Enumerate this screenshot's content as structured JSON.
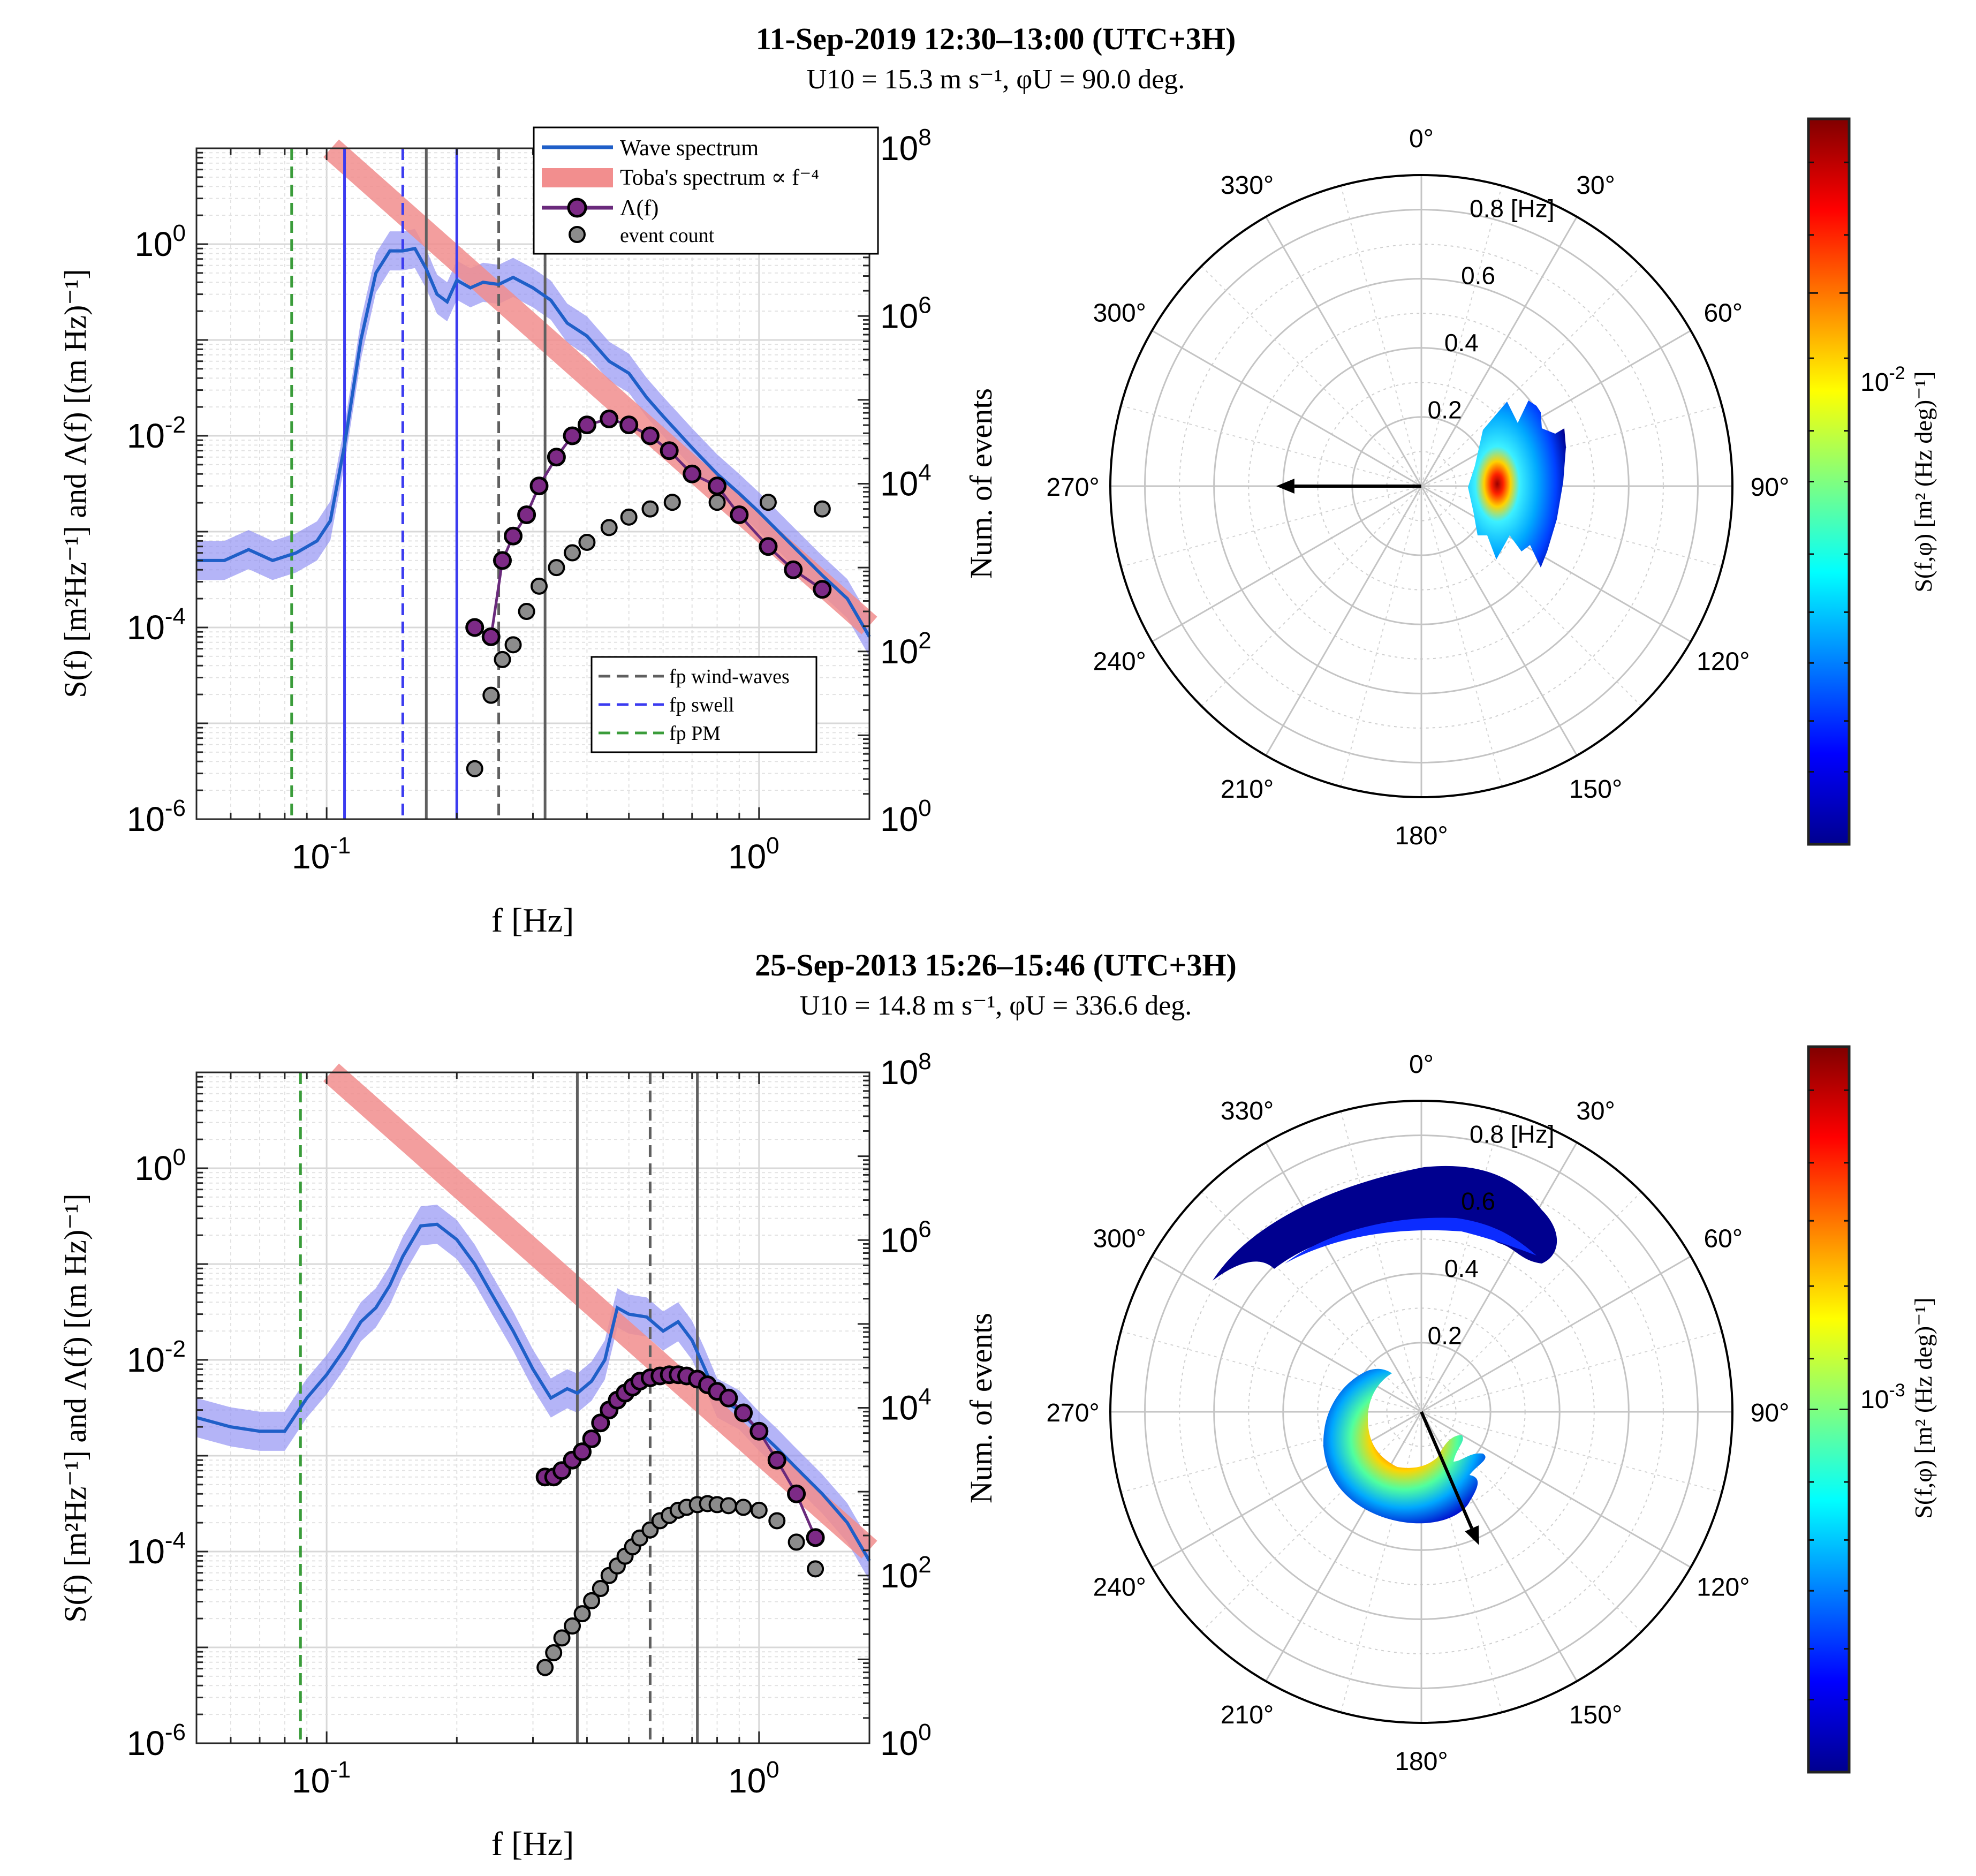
{
  "panels": [
    {
      "title": "11-Sep-2019 12:30–13:00 (UTC+3H)",
      "subtitle": "U10 = 15.3 m s⁻¹, φU = 90.0 deg.",
      "spectrum_chart": {
        "type": "line",
        "xlabel": "f [Hz]",
        "ylabel": "S(f) [m²Hz⁻¹] and Λ(f) [(m Hz)⁻¹]",
        "ylabel_right": "Num. of events",
        "xlim": [
          0.05,
          1.8
        ],
        "ylim": [
          1e-06,
          10
        ],
        "ylim_right": [
          1,
          100000000.0
        ],
        "xticks": [
          {
            "v": 0.1,
            "b": "10",
            "e": "-1"
          },
          {
            "v": 1,
            "b": "10",
            "e": "0"
          }
        ],
        "yticks": [
          {
            "v": 1,
            "b": "10",
            "e": "0"
          },
          {
            "v": 0.01,
            "b": "10",
            "e": "-2"
          },
          {
            "v": 0.0001,
            "b": "10",
            "e": "-4"
          },
          {
            "v": 1e-06,
            "b": "10",
            "e": "-6"
          }
        ],
        "yticks_right": [
          {
            "v": 100000000.0,
            "b": "10",
            "e": "8"
          },
          {
            "v": 1000000.0,
            "b": "10",
            "e": "6"
          },
          {
            "v": 10000.0,
            "b": "10",
            "e": "4"
          },
          {
            "v": 100,
            "b": "10",
            "e": "2"
          },
          {
            "v": 1,
            "b": "10",
            "e": "0"
          }
        ],
        "legend1": [
          "Wave spectrum",
          "Toba's spectrum ∝ f⁻⁴",
          "Λ(f)",
          "event count"
        ],
        "legend2": [
          "fp wind-waves",
          "fp swell",
          "fp PM"
        ],
        "wave_spectrum": {
          "f": [
            0.05,
            0.058,
            0.066,
            0.075,
            0.085,
            0.095,
            0.102,
            0.11,
            0.12,
            0.13,
            0.14,
            0.15,
            0.16,
            0.17,
            0.18,
            0.19,
            0.2,
            0.215,
            0.23,
            0.25,
            0.27,
            0.3,
            0.33,
            0.36,
            0.4,
            0.45,
            0.5,
            0.55,
            0.6,
            0.7,
            0.8,
            0.9,
            1.0,
            1.2,
            1.4,
            1.6,
            1.8
          ],
          "S": [
            0.0005,
            0.0005,
            0.00065,
            0.0005,
            0.0006,
            0.0008,
            0.0013,
            0.008,
            0.1,
            0.5,
            0.85,
            0.85,
            0.9,
            0.55,
            0.3,
            0.25,
            0.42,
            0.35,
            0.4,
            0.38,
            0.45,
            0.35,
            0.26,
            0.15,
            0.11,
            0.06,
            0.045,
            0.025,
            0.016,
            0.0075,
            0.004,
            0.0025,
            0.0016,
            0.0007,
            0.00035,
            0.0002,
            8e-05
          ]
        },
        "toba_amplitude": 0.0011,
        "lambda": {
          "f": [
            0.22,
            0.24,
            0.255,
            0.27,
            0.29,
            0.31,
            0.34,
            0.37,
            0.4,
            0.45,
            0.5,
            0.56,
            0.62,
            0.7,
            0.8,
            0.9,
            1.05,
            1.2,
            1.4
          ],
          "value": [
            0.0001,
            8e-05,
            0.0005,
            0.0009,
            0.0015,
            0.003,
            0.006,
            0.01,
            0.013,
            0.015,
            0.013,
            0.01,
            0.007,
            0.004,
            0.003,
            0.0015,
            0.0007,
            0.0004,
            0.00025
          ]
        },
        "event_count": {
          "f": [
            0.22,
            0.24,
            0.255,
            0.27,
            0.29,
            0.31,
            0.34,
            0.37,
            0.4,
            0.45,
            0.5,
            0.56,
            0.63,
            0.8,
            1.05,
            1.4
          ],
          "count": [
            4,
            30,
            80,
            120,
            300,
            600,
            1000,
            1500,
            2000,
            3000,
            4000,
            5000,
            6000,
            6000,
            6000,
            5000
          ]
        },
        "vlines": [
          {
            "f": 0.11,
            "style": "swell-solid"
          },
          {
            "f": 0.15,
            "style": "swell-dashed"
          },
          {
            "f": 0.17,
            "style": "gray-solid"
          },
          {
            "f": 0.2,
            "style": "swell-solid"
          },
          {
            "f": 0.25,
            "style": "gray-dashed"
          },
          {
            "f": 0.32,
            "style": "gray-solid"
          },
          {
            "f": 0.083,
            "style": "pm-dashed"
          }
        ]
      },
      "polar": {
        "ring_labels": [
          "0.2",
          "0.4",
          "0.6",
          "0.8 [Hz]"
        ],
        "angle_labels": [
          "0°",
          "30°",
          "60°",
          "90°",
          "120°",
          "150°",
          "180°",
          "210°",
          "240°",
          "270°",
          "300°",
          "330°"
        ],
        "wind_arrow_direction_deg": 270,
        "colorbar_label": "S(f,φ) [m² (Hz deg)⁻¹]",
        "colorbar_tick": {
          "b": "10",
          "e": "-2"
        }
      }
    },
    {
      "title": "25-Sep-2013 15:26–15:46 (UTC+3H)",
      "subtitle": "U10 = 14.8 m s⁻¹, φU = 336.6 deg.",
      "spectrum_chart": {
        "type": "line",
        "xlabel": "f [Hz]",
        "ylabel": "S(f) [m²Hz⁻¹] and Λ(f) [(m Hz)⁻¹]",
        "ylabel_right": "Num. of events",
        "xlim": [
          0.05,
          1.8
        ],
        "ylim": [
          1e-06,
          10
        ],
        "ylim_right": [
          1,
          100000000.0
        ],
        "xticks": [
          {
            "v": 0.1,
            "b": "10",
            "e": "-1"
          },
          {
            "v": 1,
            "b": "10",
            "e": "0"
          }
        ],
        "yticks": [
          {
            "v": 1,
            "b": "10",
            "e": "0"
          },
          {
            "v": 0.01,
            "b": "10",
            "e": "-2"
          },
          {
            "v": 0.0001,
            "b": "10",
            "e": "-4"
          },
          {
            "v": 1e-06,
            "b": "10",
            "e": "-6"
          }
        ],
        "yticks_right": [
          {
            "v": 100000000.0,
            "b": "10",
            "e": "8"
          },
          {
            "v": 1000000.0,
            "b": "10",
            "e": "6"
          },
          {
            "v": 10000.0,
            "b": "10",
            "e": "4"
          },
          {
            "v": 100,
            "b": "10",
            "e": "2"
          },
          {
            "v": 1,
            "b": "10",
            "e": "0"
          }
        ],
        "wave_spectrum": {
          "f": [
            0.05,
            0.06,
            0.07,
            0.08,
            0.09,
            0.1,
            0.11,
            0.12,
            0.13,
            0.14,
            0.15,
            0.165,
            0.18,
            0.2,
            0.22,
            0.24,
            0.27,
            0.3,
            0.33,
            0.36,
            0.38,
            0.41,
            0.44,
            0.47,
            0.5,
            0.55,
            0.6,
            0.65,
            0.7,
            0.75,
            0.8,
            0.9,
            1.0,
            1.1,
            1.2,
            1.4,
            1.6,
            1.8
          ],
          "S": [
            0.0025,
            0.002,
            0.0018,
            0.0018,
            0.004,
            0.007,
            0.013,
            0.025,
            0.035,
            0.06,
            0.12,
            0.25,
            0.26,
            0.18,
            0.1,
            0.05,
            0.02,
            0.008,
            0.004,
            0.005,
            0.0045,
            0.006,
            0.01,
            0.035,
            0.03,
            0.028,
            0.02,
            0.025,
            0.016,
            0.008,
            0.004,
            0.003,
            0.0018,
            0.0012,
            0.0008,
            0.0004,
            0.0002,
            8e-05
          ]
        },
        "toba_amplitude": 0.0011,
        "lambda": {
          "f": [
            0.32,
            0.335,
            0.35,
            0.37,
            0.39,
            0.41,
            0.43,
            0.45,
            0.47,
            0.49,
            0.51,
            0.53,
            0.56,
            0.59,
            0.62,
            0.65,
            0.68,
            0.72,
            0.76,
            0.8,
            0.85,
            0.92,
            1.0,
            1.1,
            1.22,
            1.35
          ],
          "value": [
            0.0006,
            0.0006,
            0.0007,
            0.0009,
            0.0011,
            0.0015,
            0.0022,
            0.003,
            0.0038,
            0.0045,
            0.0052,
            0.006,
            0.0065,
            0.0068,
            0.007,
            0.007,
            0.0068,
            0.0063,
            0.0055,
            0.0047,
            0.004,
            0.0028,
            0.0018,
            0.0009,
            0.0004,
            0.00014
          ]
        },
        "event_count": {
          "f": [
            0.32,
            0.335,
            0.35,
            0.37,
            0.39,
            0.41,
            0.43,
            0.45,
            0.47,
            0.49,
            0.51,
            0.53,
            0.56,
            0.59,
            0.62,
            0.65,
            0.68,
            0.72,
            0.76,
            0.8,
            0.85,
            0.92,
            1.0,
            1.1,
            1.22,
            1.35
          ],
          "count": [
            8,
            12,
            18,
            25,
            35,
            50,
            70,
            100,
            130,
            170,
            220,
            280,
            350,
            450,
            520,
            600,
            650,
            700,
            720,
            700,
            680,
            650,
            600,
            450,
            250,
            120
          ]
        },
        "vlines": [
          {
            "f": 0.38,
            "style": "gray-solid"
          },
          {
            "f": 0.56,
            "style": "gray-dashed"
          },
          {
            "f": 0.72,
            "style": "gray-solid"
          },
          {
            "f": 0.087,
            "style": "pm-dashed"
          }
        ]
      },
      "polar": {
        "ring_labels": [
          "0.2",
          "0.4",
          "0.6",
          "0.8 [Hz]"
        ],
        "angle_labels": [
          "0°",
          "30°",
          "60°",
          "90°",
          "120°",
          "150°",
          "180°",
          "210°",
          "240°",
          "270°",
          "300°",
          "330°"
        ],
        "wind_arrow_direction_deg": 156.6,
        "colorbar_label": "S(f,φ) [m² (Hz deg)⁻¹]",
        "colorbar_tick": {
          "b": "10",
          "e": "-3"
        }
      }
    }
  ],
  "colors": {
    "wave": "#1f5fc8",
    "wave_band": "#8c8cf2",
    "toba": "#f28e8e",
    "lambda_line": "#6a2a7c",
    "lambda_fill": "#7d2a86",
    "count_fill": "#8c8c8c",
    "swell": "#3b3bf0",
    "pm": "#3a9c3a",
    "gray_line": "#5f5f5f"
  }
}
